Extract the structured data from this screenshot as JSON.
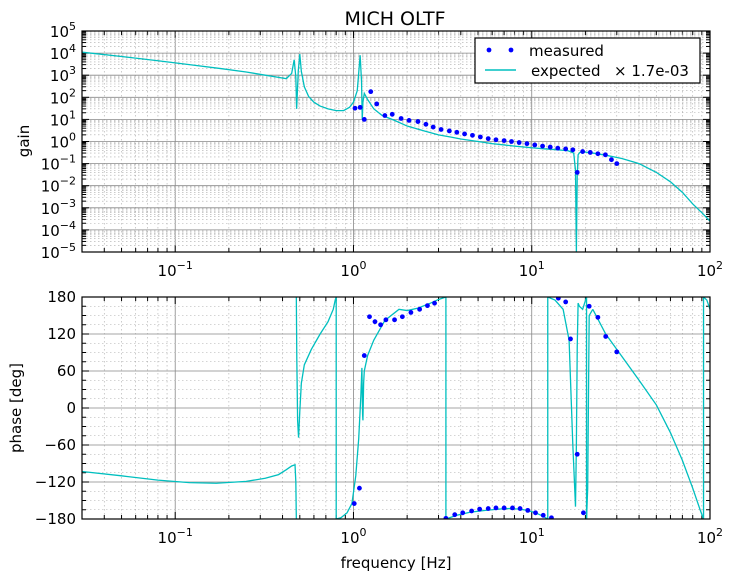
{
  "chart_data": [
    {
      "type": "line",
      "title": "MICH OLTF",
      "xlabel": "",
      "ylabel": "gain",
      "xscale": "log",
      "yscale": "log",
      "xlim": [
        0.03,
        100
      ],
      "ylim": [
        1e-05,
        100000.0
      ],
      "grid": true,
      "legend_position": "top-right",
      "x_ticks": [
        {
          "base": "10",
          "exp": "-1",
          "value": 0.1
        },
        {
          "base": "10",
          "exp": "0",
          "value": 1
        },
        {
          "base": "10",
          "exp": "1",
          "value": 10
        },
        {
          "base": "10",
          "exp": "2",
          "value": 100
        }
      ],
      "y_ticks": [
        {
          "base": "10",
          "exp": "5",
          "value": 100000
        },
        {
          "base": "10",
          "exp": "4",
          "value": 10000
        },
        {
          "base": "10",
          "exp": "3",
          "value": 1000
        },
        {
          "base": "10",
          "exp": "2",
          "value": 100
        },
        {
          "base": "10",
          "exp": "1",
          "value": 10
        },
        {
          "base": "10",
          "exp": "0",
          "value": 1
        },
        {
          "base": "10",
          "exp": "-1",
          "value": 0.1
        },
        {
          "base": "10",
          "exp": "-2",
          "value": 0.01
        },
        {
          "base": "10",
          "exp": "-3",
          "value": 0.001
        },
        {
          "base": "10",
          "exp": "-4",
          "value": 0.0001
        },
        {
          "base": "10",
          "exp": "-5",
          "value": 1e-05
        }
      ],
      "series": [
        {
          "name": "measured",
          "style": "markers",
          "color": "#0000ff",
          "x": [
            1.02,
            1.09,
            1.15,
            1.25,
            1.35,
            1.5,
            1.65,
            1.85,
            2.05,
            2.3,
            2.55,
            2.8,
            3.1,
            3.45,
            3.8,
            4.2,
            4.65,
            5.15,
            5.7,
            6.3,
            7.0,
            7.7,
            8.5,
            9.4,
            10.4,
            11.5,
            12.7,
            14.0,
            15.5,
            17.0,
            18.0,
            19.3,
            21.3,
            23.5,
            25.9,
            28.0,
            30.0
          ],
          "y": [
            32,
            35,
            10,
            180,
            50,
            15,
            17,
            11,
            9,
            8,
            6,
            4.5,
            3.5,
            3,
            2.6,
            2.2,
            1.9,
            1.6,
            1.35,
            1.2,
            1.1,
            1.0,
            0.9,
            0.8,
            0.7,
            0.62,
            0.56,
            0.5,
            0.46,
            0.42,
            0.04,
            0.35,
            0.32,
            0.28,
            0.25,
            0.15,
            0.1
          ]
        },
        {
          "name": "expected",
          "style": "line",
          "color": "#00bfbf",
          "x": [
            0.03,
            0.05,
            0.08,
            0.12,
            0.18,
            0.25,
            0.32,
            0.38,
            0.42,
            0.45,
            0.465,
            0.475,
            0.48,
            0.485,
            0.49,
            0.5,
            0.51,
            0.53,
            0.56,
            0.6,
            0.65,
            0.72,
            0.8,
            0.88,
            0.95,
            1.0,
            1.05,
            1.09,
            1.11,
            1.12,
            1.13,
            1.15,
            1.2,
            1.3,
            1.45,
            1.7,
            2.0,
            2.5,
            3.0,
            3.5,
            4.0,
            5.0,
            6.0,
            7.0,
            8.0,
            10.0,
            12.0,
            14.0,
            16.0,
            17.2,
            17.6,
            17.8,
            18.0,
            18.2,
            18.6,
            19.5,
            22.0,
            26.0,
            32.0,
            40.0,
            50.0,
            60.0,
            70.0,
            80.0,
            90.0,
            100.0
          ],
          "y": [
            11000,
            7000,
            4500,
            3000,
            2000,
            1400,
            1000,
            800,
            700,
            1200,
            5000,
            800,
            30,
            200,
            1500,
            9000,
            1500,
            300,
            110,
            60,
            40,
            30,
            25,
            25,
            35,
            60,
            200,
            8000,
            500,
            10,
            60,
            150,
            80,
            30,
            15,
            9,
            5,
            3,
            2,
            1.6,
            1.3,
            1.0,
            0.8,
            0.7,
            0.62,
            0.52,
            0.46,
            0.42,
            0.38,
            0.3,
            0.05,
            1e-05,
            0.03,
            0.25,
            0.32,
            0.34,
            0.3,
            0.24,
            0.17,
            0.1,
            0.04,
            0.015,
            0.005,
            0.0015,
            0.0006,
            0.00025
          ]
        }
      ],
      "legend": [
        {
          "label": "measured",
          "marker": "dots"
        },
        {
          "label": "expected",
          "suffix": "× 1.7e-03",
          "marker": "line"
        }
      ]
    },
    {
      "type": "line",
      "title": "",
      "xlabel": "frequency [Hz]",
      "ylabel": "phase [deg]",
      "xscale": "log",
      "yscale": "linear",
      "xlim": [
        0.03,
        100
      ],
      "ylim": [
        -180,
        180
      ],
      "grid": true,
      "x_ticks": [
        {
          "base": "10",
          "exp": "-1",
          "value": 0.1
        },
        {
          "base": "10",
          "exp": "0",
          "value": 1
        },
        {
          "base": "10",
          "exp": "1",
          "value": 10
        },
        {
          "base": "10",
          "exp": "2",
          "value": 100
        }
      ],
      "y_ticks": [
        "180",
        "120",
        "60",
        "0",
        "−60",
        "−120",
        "−180"
      ],
      "y_tick_values": [
        180,
        120,
        60,
        0,
        -60,
        -120,
        -180
      ],
      "series": [
        {
          "name": "measured",
          "style": "markers",
          "color": "#0000ff",
          "x": [
            1.01,
            1.08,
            1.15,
            1.23,
            1.32,
            1.42,
            1.52,
            1.7,
            1.88,
            2.1,
            2.35,
            2.6,
            2.85,
            3.3,
            3.7,
            4.1,
            4.6,
            5.1,
            5.7,
            6.3,
            7.0,
            7.8,
            8.6,
            9.5,
            10.5,
            11.6,
            12.9,
            14.1,
            15.5,
            16.5,
            18.0,
            19.5,
            21.0,
            23.5,
            26.0,
            30.0
          ],
          "y": [
            -155,
            -130,
            85,
            148,
            140,
            135,
            143,
            143,
            148,
            155,
            160,
            166,
            170,
            -179,
            -173,
            -170,
            -167,
            -164,
            -163,
            -162,
            -162,
            -162,
            -163,
            -166,
            -170,
            -174,
            -178,
            178,
            172,
            112,
            -75,
            -170,
            165,
            147,
            116,
            91
          ]
        },
        {
          "name": "expected",
          "style": "line",
          "color": "#00bfbf",
          "segments": [
            {
              "x": [
                0.03,
                0.05,
                0.08,
                0.12,
                0.17,
                0.25,
                0.32,
                0.38,
                0.42,
                0.45,
                0.47,
                0.475,
                0.478
              ],
              "y": [
                -103,
                -110,
                -117,
                -121,
                -122,
                -119,
                -114,
                -108,
                -100,
                -94,
                -92,
                -120,
                -180
              ]
            },
            {
              "x": [
                0.478,
                0.481,
                0.486,
                0.492,
                0.5,
                0.51,
                0.53,
                0.58,
                0.65,
                0.72,
                0.77,
                0.79,
                0.8
              ],
              "y": [
                180,
                80,
                -20,
                -48,
                -5,
                40,
                70,
                95,
                120,
                140,
                160,
                175,
                180
              ]
            },
            {
              "x": [
                0.8,
                0.8
              ],
              "y": [
                -180,
                180
              ]
            },
            {
              "x": [
                0.8,
                0.85,
                0.92,
                0.98,
                1.03,
                1.07,
                1.1,
                1.115,
                1.125,
                1.13,
                1.14,
                1.15,
                1.2,
                1.3,
                1.5,
                1.8,
                2.0,
                2.3,
                2.7,
                3.0,
                3.3
              ],
              "y": [
                -180,
                -178,
                -170,
                -155,
                -110,
                -50,
                20,
                65,
                -10,
                -20,
                40,
                60,
                85,
                110,
                142,
                160,
                158,
                162,
                170,
                176,
                180
              ]
            },
            {
              "x": [
                3.3,
                3.3
              ],
              "y": [
                180,
                -180
              ]
            },
            {
              "x": [
                3.3,
                3.8,
                4.5,
                5.5,
                6.5,
                7.5,
                8.5,
                9.5,
                10.5,
                11.5,
                12.3
              ],
              "y": [
                -180,
                -174,
                -169,
                -166,
                -164,
                -163,
                -164,
                -166,
                -170,
                -175,
                -180
              ]
            },
            {
              "x": [
                12.3,
                12.3
              ],
              "y": [
                -180,
                180
              ]
            },
            {
              "x": [
                12.3,
                13.5,
                15.0,
                16.2,
                17.0,
                17.3,
                17.6,
                17.8,
                18.0,
                18.2,
                18.5,
                19.3,
                20.3
              ],
              "y": [
                180,
                175,
                160,
                110,
                -60,
                -110,
                -160,
                -60,
                100,
                170,
                165,
                160,
                180
              ]
            },
            {
              "x": [
                20.3,
                20.3
              ],
              "y": [
                180,
                -180
              ]
            },
            {
              "x": [
                20.3,
                20.6,
                21.0,
                22.0
              ],
              "y": [
                -180,
                -130,
                150,
                160
              ]
            },
            {
              "x": [
                22.0,
                26.0,
                30.0,
                40.0,
                50.0,
                60.0,
                70.0,
                80.0,
                88.0,
                92.0
              ],
              "y": [
                160,
                120,
                95,
                45,
                5,
                -40,
                -85,
                -130,
                -165,
                -180
              ]
            },
            {
              "x": [
                92.0,
                92.0
              ],
              "y": [
                -180,
                180
              ]
            },
            {
              "x": [
                92.0,
                96.0,
                100.0
              ],
              "y": [
                180,
                175,
                160
              ]
            }
          ]
        }
      ]
    }
  ]
}
